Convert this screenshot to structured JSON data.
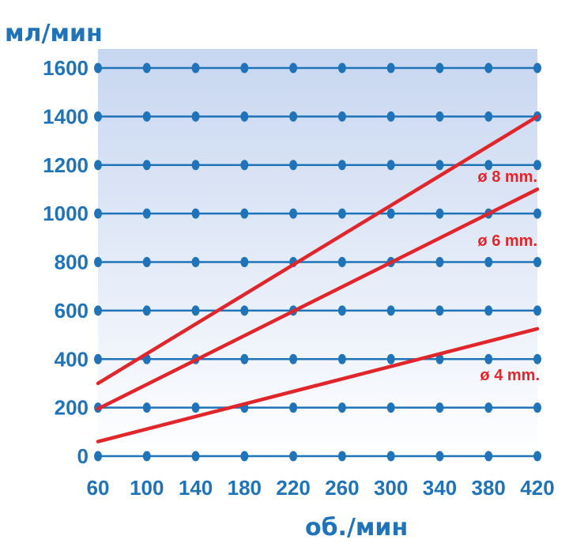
{
  "chart_data": {
    "type": "line",
    "ylabel": "мл/мин",
    "xlabel": "об./мин",
    "xlim": [
      60,
      420
    ],
    "ylim": [
      0,
      1600
    ],
    "x_ticks": [
      "60",
      "100",
      "140",
      "180",
      "220",
      "260",
      "300",
      "340",
      "380",
      "420"
    ],
    "y_ticks": [
      "0",
      "200",
      "400",
      "600",
      "800",
      "1000",
      "1200",
      "1400",
      "1600"
    ],
    "grid_dot_x": [
      60,
      100,
      140,
      180,
      220,
      260,
      300,
      340,
      380,
      420
    ],
    "grid": true,
    "background": "gradient-blue",
    "series": [
      {
        "name": "ø 8 mm.",
        "x": [
          60,
          420
        ],
        "y": [
          300,
          1400
        ]
      },
      {
        "name": "ø 6 mm.",
        "x": [
          60,
          420
        ],
        "y": [
          195,
          1100
        ]
      },
      {
        "name": "ø 4 mm.",
        "x": [
          60,
          420
        ],
        "y": [
          60,
          525
        ]
      }
    ],
    "colors": {
      "line": "#e0262a",
      "grid": "#1f73b8",
      "text": "#1f73b8",
      "series_label": "#e0262a"
    }
  }
}
